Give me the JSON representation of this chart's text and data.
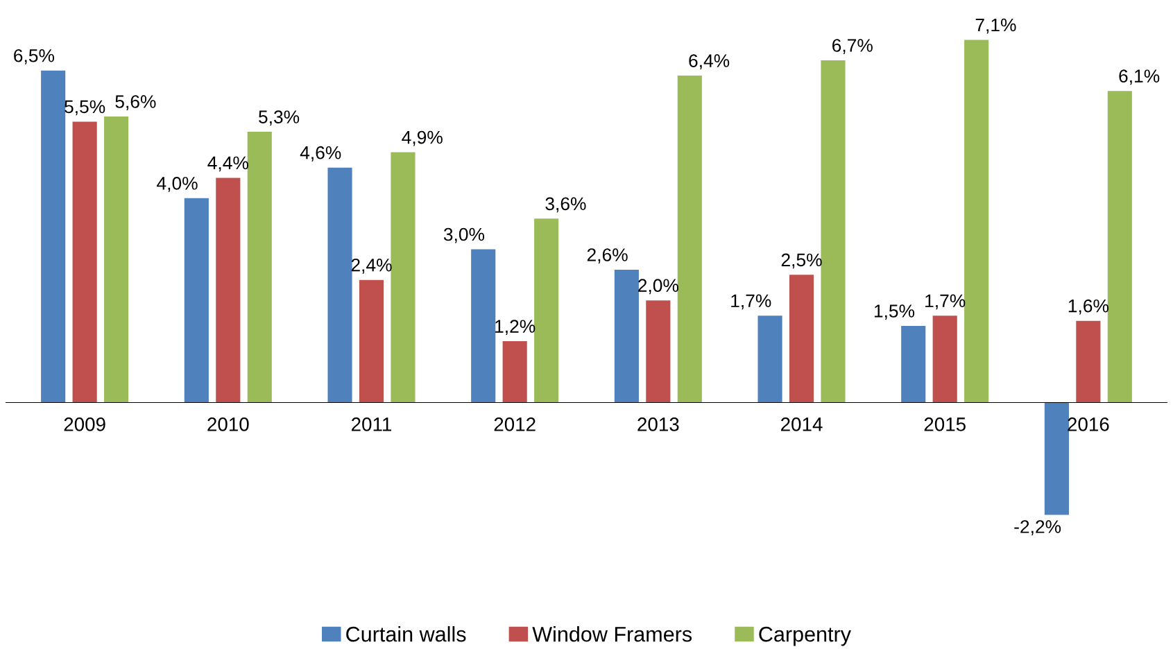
{
  "chart_data": {
    "type": "bar",
    "categories": [
      "2009",
      "2010",
      "2011",
      "2012",
      "2013",
      "2014",
      "2015",
      "2016"
    ],
    "series": [
      {
        "name": "Curtain walls",
        "color": "#4f81bd",
        "values": [
          6.5,
          4.0,
          4.6,
          3.0,
          2.6,
          1.7,
          1.5,
          -2.2
        ],
        "value_labels": [
          "6,5%",
          "4,0%",
          "4,6%",
          "3,0%",
          "2,6%",
          "1,7%",
          "1,5%",
          "-2,2%"
        ]
      },
      {
        "name": "Window Framers",
        "color": "#c0504d",
        "values": [
          5.5,
          4.4,
          2.4,
          1.2,
          2.0,
          2.5,
          1.7,
          1.6
        ],
        "value_labels": [
          "5,5%",
          "4,4%",
          "2,4%",
          "1,2%",
          "2,0%",
          "2,5%",
          "1,7%",
          "1,6%"
        ]
      },
      {
        "name": "Carpentry",
        "color": "#9bbb59",
        "values": [
          5.6,
          5.3,
          4.9,
          3.6,
          6.4,
          6.7,
          7.1,
          6.1
        ],
        "value_labels": [
          "5,6%",
          "5,3%",
          "4,9%",
          "3,6%",
          "6,4%",
          "6,7%",
          "7,1%",
          "6,1%"
        ]
      }
    ],
    "tick_labels": "x",
    "grid": false,
    "legend": "bottom"
  }
}
